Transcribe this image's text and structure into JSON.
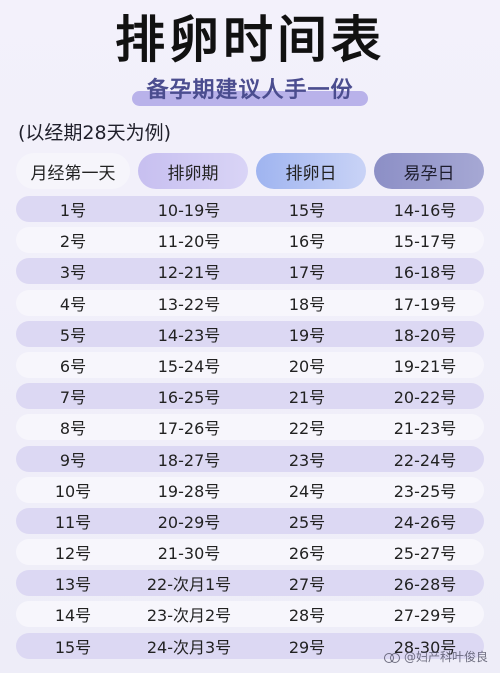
{
  "title": "排卵时间表",
  "subtitle": "备孕期建议人手一份",
  "note": "(以经期28天为例)",
  "header": [
    "月经第一天",
    "排卵期",
    "排卵日",
    "易孕日"
  ],
  "rows": [
    [
      "1号",
      "10-19号",
      "15号",
      "14-16号"
    ],
    [
      "2号",
      "11-20号",
      "16号",
      "15-17号"
    ],
    [
      "3号",
      "12-21号",
      "17号",
      "16-18号"
    ],
    [
      "4号",
      "13-22号",
      "18号",
      "17-19号"
    ],
    [
      "5号",
      "14-23号",
      "19号",
      "18-20号"
    ],
    [
      "6号",
      "15-24号",
      "20号",
      "19-21号"
    ],
    [
      "7号",
      "16-25号",
      "21号",
      "20-22号"
    ],
    [
      "8号",
      "17-26号",
      "22号",
      "21-23号"
    ],
    [
      "9号",
      "18-27号",
      "23号",
      "22-24号"
    ],
    [
      "10号",
      "19-28号",
      "24号",
      "23-25号"
    ],
    [
      "11号",
      "20-29号",
      "25号",
      "24-26号"
    ],
    [
      "12号",
      "21-30号",
      "26号",
      "25-27号"
    ],
    [
      "13号",
      "22-次月1号",
      "27号",
      "26-28号"
    ],
    [
      "14号",
      "23-次月2号",
      "28号",
      "27-29号"
    ],
    [
      "15号",
      "24-次月3号",
      "29号",
      "28-30号"
    ]
  ],
  "watermark": "@妇产科叶俊良"
}
